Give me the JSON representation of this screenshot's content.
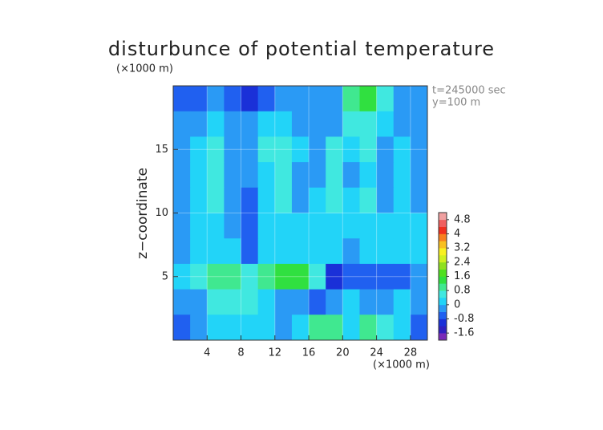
{
  "chart_data": {
    "type": "contour",
    "title": "disturbunce of potential temperature",
    "y_unit": "(×1000 m)",
    "x_unit": "(×1000 m)",
    "y_label": "z−coordinate",
    "annotations": [
      "t=245000 sec",
      "y=100 m"
    ],
    "xlim": [
      0,
      30
    ],
    "ylim": [
      0,
      20
    ],
    "xticks": [
      4,
      8,
      12,
      16,
      20,
      24,
      28
    ],
    "yticks": [
      5,
      10,
      15
    ],
    "grid": true,
    "x": [
      1,
      3,
      5,
      7,
      9,
      11,
      13,
      15,
      17,
      19,
      21,
      23,
      25,
      27,
      29
    ],
    "y": [
      19,
      17,
      15,
      13,
      11,
      9,
      7,
      5,
      3,
      1
    ],
    "z": [
      [
        -0.8,
        -0.8,
        -0.4,
        -0.8,
        -1.2,
        -0.8,
        -0.4,
        -0.4,
        -0.4,
        -0.4,
        0.8,
        1.2,
        0.4,
        -0.4,
        -0.4
      ],
      [
        -0.4,
        -0.4,
        0,
        -0.4,
        -0.4,
        0,
        0,
        -0.4,
        -0.4,
        -0.4,
        0.4,
        0.4,
        0,
        -0.4,
        -0.4
      ],
      [
        -0.4,
        0,
        0.4,
        -0.4,
        -0.4,
        0.4,
        0.4,
        0,
        -0.4,
        0.4,
        0,
        0.4,
        -0.4,
        0,
        -0.4
      ],
      [
        -0.4,
        0,
        0.4,
        -0.4,
        -0.4,
        0,
        0.4,
        -0.4,
        -0.4,
        0.4,
        -0.4,
        0,
        -0.4,
        0,
        -0.4
      ],
      [
        -0.4,
        0,
        0.4,
        -0.4,
        -0.8,
        0,
        0.4,
        -0.4,
        0,
        0.4,
        0,
        0.4,
        -0.4,
        0,
        -0.4
      ],
      [
        -0.4,
        0,
        0,
        -0.4,
        -0.8,
        0,
        0,
        0,
        0,
        0,
        0,
        0,
        0,
        0,
        0
      ],
      [
        -0.4,
        0,
        0,
        0,
        -0.8,
        0,
        0,
        0,
        0,
        0,
        -0.4,
        0,
        0,
        0,
        0
      ],
      [
        0,
        0.4,
        0.8,
        0.8,
        0.4,
        0.8,
        1.2,
        1.2,
        0.4,
        -1.2,
        -0.8,
        -0.8,
        -0.8,
        -0.8,
        -0.4
      ],
      [
        -0.4,
        -0.4,
        0.4,
        0.4,
        0.4,
        0,
        -0.4,
        -0.4,
        -0.8,
        -0.4,
        0,
        -0.4,
        -0.4,
        0,
        -0.4
      ],
      [
        -0.8,
        -0.4,
        0,
        0,
        0,
        0,
        -0.4,
        0,
        0.8,
        0.8,
        0,
        0.8,
        0.4,
        0,
        -0.8
      ]
    ],
    "levels": [
      -2.0,
      -1.6,
      -1.2,
      -0.8,
      -0.4,
      0,
      0.4,
      0.8,
      1.2,
      1.6,
      2.0,
      2.4,
      2.8,
      3.2,
      3.6,
      4.0,
      4.4,
      4.8,
      5.2
    ],
    "colors": [
      "#7a2ab8",
      "#3020c0",
      "#1a30d8",
      "#2060f0",
      "#2a9af5",
      "#22d4f8",
      "#40e8e0",
      "#40e890",
      "#30e040",
      "#50e020",
      "#90e020",
      "#d0f020",
      "#f8f020",
      "#f8c020",
      "#f88020",
      "#f03020",
      "#f06060",
      "#f0a0a0"
    ],
    "colorbar_ticks": [
      -1.6,
      -0.8,
      0,
      0.8,
      1.6,
      2.4,
      3.2,
      4,
      4.8
    ]
  }
}
